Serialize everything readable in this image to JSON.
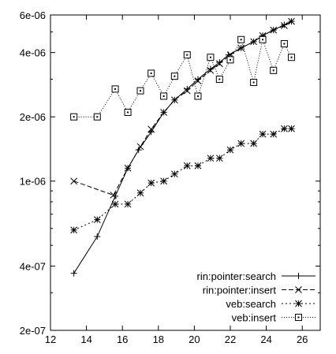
{
  "chart_data": {
    "type": "line",
    "title": "",
    "xlabel": "",
    "ylabel": "",
    "xlim": [
      12,
      27
    ],
    "ylim": [
      2e-07,
      6e-06
    ],
    "yscale": "log",
    "grid": false,
    "legend_position": "bottom-right",
    "x_ticks": [
      12,
      14,
      16,
      18,
      20,
      22,
      24,
      26
    ],
    "x_tick_labels": [
      "12",
      "14",
      "16",
      "18",
      "20",
      "22",
      "24",
      "26"
    ],
    "y_ticks": [
      2e-07,
      4e-07,
      1e-06,
      2e-06,
      4e-06,
      6e-06
    ],
    "y_tick_labels": [
      "2e-07",
      "4e-07",
      "1e-06",
      "2e-06",
      "4e-06",
      "6e-06"
    ],
    "series": [
      {
        "name": "rin:pointer:search",
        "marker": "plus",
        "dash": "",
        "x": [
          13.3,
          14.6,
          15.6,
          16.3,
          16.9,
          17.6,
          18.3,
          18.9,
          19.6,
          20.2,
          20.9,
          21.4,
          21.9,
          22.6,
          23.3,
          23.8,
          24.4,
          25.0,
          25.4
        ],
        "y": [
          3.7e-07,
          5.5e-07,
          8.5e-07,
          1.15e-06,
          1.4e-06,
          1.7e-06,
          2.1e-06,
          2.4e-06,
          2.7e-06,
          3e-06,
          3.35e-06,
          3.6e-06,
          3.9e-06,
          4.2e-06,
          4.5e-06,
          4.8e-06,
          5.1e-06,
          5.4e-06,
          5.6e-06
        ]
      },
      {
        "name": "rin:pointer:insert",
        "marker": "x",
        "dash": "6,3",
        "x": [
          13.3,
          15.5,
          16.3,
          17.0,
          17.6,
          18.3,
          18.9,
          19.6,
          20.2,
          20.9,
          21.4,
          22.0,
          22.6,
          23.3,
          23.8,
          24.4,
          25.0,
          25.4
        ],
        "y": [
          1e-06,
          8.6e-07,
          1.15e-06,
          1.45e-06,
          1.75e-06,
          2.1e-06,
          2.4e-06,
          2.65e-06,
          2.95e-06,
          3.3e-06,
          3.55e-06,
          3.9e-06,
          4.2e-06,
          4.5e-06,
          4.8e-06,
          5.1e-06,
          5.35e-06,
          5.6e-06
        ]
      },
      {
        "name": "veb:search",
        "marker": "star",
        "dash": "2,3",
        "x": [
          13.3,
          14.6,
          15.6,
          16.3,
          17.0,
          17.6,
          18.3,
          18.9,
          19.6,
          20.2,
          20.9,
          21.4,
          22.0,
          22.6,
          23.3,
          23.8,
          24.4,
          25.0,
          25.4
        ],
        "y": [
          5.9e-07,
          6.6e-07,
          7.8e-07,
          7.8e-07,
          8.8e-07,
          9.8e-07,
          1e-06,
          1.08e-06,
          1.18e-06,
          1.18e-06,
          1.28e-06,
          1.28e-06,
          1.4e-06,
          1.5e-06,
          1.5e-06,
          1.66e-06,
          1.66e-06,
          1.76e-06,
          1.76e-06
        ]
      },
      {
        "name": "veb:insert",
        "marker": "square",
        "dash": "1,2",
        "x": [
          13.3,
          14.6,
          15.6,
          16.3,
          17.0,
          17.6,
          18.3,
          18.9,
          19.6,
          20.2,
          20.9,
          21.4,
          22.0,
          22.6,
          23.3,
          23.8,
          24.4,
          25.0,
          25.4
        ],
        "y": [
          2e-06,
          2e-06,
          2.7e-06,
          2.1e-06,
          2.65e-06,
          3.2e-06,
          2.5e-06,
          3.1e-06,
          3.9e-06,
          2.5e-06,
          3.8e-06,
          3e-06,
          3.7e-06,
          4.6e-06,
          2.9e-06,
          4.6e-06,
          3.3e-06,
          4.4e-06,
          3.8e-06
        ]
      }
    ]
  }
}
